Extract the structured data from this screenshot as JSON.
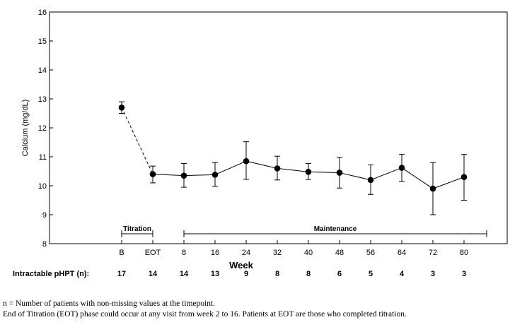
{
  "chart_data": {
    "type": "line",
    "ylabel": "Calcium (mg/dL)",
    "xlabel": "Week",
    "ylim": [
      8,
      16
    ],
    "yticks": [
      "8",
      "9",
      "10",
      "11",
      "12",
      "13",
      "14",
      "15",
      "16"
    ],
    "categories": [
      "B",
      "EOT",
      "8",
      "16",
      "24",
      "32",
      "40",
      "48",
      "56",
      "64",
      "72",
      "80"
    ],
    "series": [
      {
        "values": [
          12.7,
          10.4,
          10.35,
          10.38,
          10.85,
          10.6,
          10.48,
          10.45,
          10.2,
          10.62,
          9.9,
          10.3
        ],
        "error_low": [
          12.5,
          10.1,
          9.95,
          9.98,
          10.22,
          10.2,
          10.22,
          9.92,
          9.7,
          10.15,
          9.0,
          9.5
        ],
        "error_high": [
          12.9,
          10.68,
          10.77,
          10.8,
          11.52,
          11.02,
          10.77,
          10.98,
          10.72,
          11.08,
          10.8,
          11.08
        ]
      }
    ],
    "line_style": "dashed between B and EOT, solid thereafter",
    "grid": false,
    "phases": [
      {
        "label": "Titration",
        "from": "B",
        "to": "EOT"
      },
      {
        "label": "Maintenance",
        "from": "8",
        "to": "80+"
      }
    ],
    "n_row": {
      "label": "Intractable pHPT (n):",
      "values": [
        "17",
        "14",
        "14",
        "13",
        "9",
        "8",
        "8",
        "6",
        "5",
        "4",
        "3",
        "3"
      ]
    }
  },
  "footnotes": [
    "n = Number of patients with non-missing values at the timepoint.",
    "End of Titration (EOT) phase could occur at any visit from week 2 to 16.  Patients at EOT are those who completed titration."
  ]
}
